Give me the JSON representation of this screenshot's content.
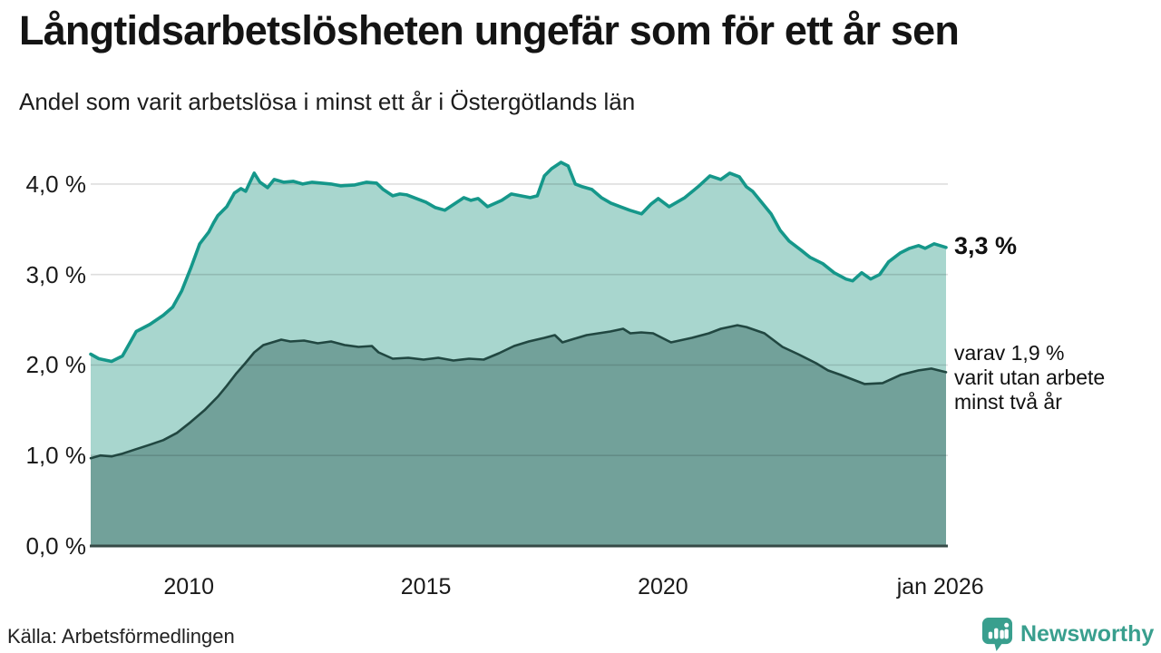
{
  "header": {
    "title": "Långtidsarbetslösheten ungefär som för ett år sen",
    "subtitle": "Andel som varit arbetslösa i minst ett år i Östergötlands län"
  },
  "chart_data": {
    "type": "area",
    "title": "Långtidsarbetslösheten ungefär som för ett år sen",
    "subtitle": "Andel som varit arbetslösa i minst ett år i Östergötlands län",
    "xlabel": "",
    "ylabel": "",
    "grid": true,
    "legend": "none",
    "xlim": [
      2007.93,
      2025.97
    ],
    "ylim": [
      0,
      4.38
    ],
    "y_ticks": [
      {
        "v": 0,
        "label": "0,0 %"
      },
      {
        "v": 1,
        "label": "1,0 %"
      },
      {
        "v": 2,
        "label": "2,0 %"
      },
      {
        "v": 3,
        "label": "3,0 %"
      },
      {
        "v": 4,
        "label": "4,0 %"
      }
    ],
    "x_ticks": [
      {
        "v": 2010,
        "label": "2010"
      },
      {
        "v": 2015,
        "label": "2015"
      },
      {
        "v": 2020,
        "label": "2020"
      },
      {
        "v": 2025.85,
        "label": "jan 2026"
      }
    ],
    "series": [
      {
        "name": "arbetslösa minst ett år",
        "color": "#15978a",
        "fill": "#a8d6ce",
        "end_value": 3.3,
        "points": [
          [
            2007.93,
            2.12
          ],
          [
            2008.1,
            2.07
          ],
          [
            2008.37,
            2.04
          ],
          [
            2008.6,
            2.1
          ],
          [
            2008.89,
            2.37
          ],
          [
            2009.18,
            2.45
          ],
          [
            2009.46,
            2.55
          ],
          [
            2009.66,
            2.64
          ],
          [
            2009.85,
            2.82
          ],
          [
            2010.04,
            3.07
          ],
          [
            2010.23,
            3.34
          ],
          [
            2010.42,
            3.47
          ],
          [
            2010.52,
            3.57
          ],
          [
            2010.61,
            3.65
          ],
          [
            2010.8,
            3.75
          ],
          [
            2010.96,
            3.9
          ],
          [
            2011.1,
            3.95
          ],
          [
            2011.2,
            3.92
          ],
          [
            2011.38,
            4.12
          ],
          [
            2011.5,
            4.02
          ],
          [
            2011.66,
            3.96
          ],
          [
            2011.8,
            4.05
          ],
          [
            2012.0,
            4.02
          ],
          [
            2012.2,
            4.03
          ],
          [
            2012.4,
            4.0
          ],
          [
            2012.6,
            4.02
          ],
          [
            2012.8,
            4.01
          ],
          [
            2013.0,
            4.0
          ],
          [
            2013.2,
            3.98
          ],
          [
            2013.5,
            3.99
          ],
          [
            2013.75,
            4.02
          ],
          [
            2013.96,
            4.01
          ],
          [
            2014.1,
            3.94
          ],
          [
            2014.3,
            3.87
          ],
          [
            2014.45,
            3.89
          ],
          [
            2014.6,
            3.88
          ],
          [
            2014.8,
            3.84
          ],
          [
            2015.0,
            3.8
          ],
          [
            2015.2,
            3.74
          ],
          [
            2015.4,
            3.71
          ],
          [
            2015.6,
            3.78
          ],
          [
            2015.8,
            3.85
          ],
          [
            2015.95,
            3.82
          ],
          [
            2016.1,
            3.84
          ],
          [
            2016.3,
            3.75
          ],
          [
            2016.6,
            3.82
          ],
          [
            2016.8,
            3.89
          ],
          [
            2017.0,
            3.87
          ],
          [
            2017.2,
            3.85
          ],
          [
            2017.35,
            3.87
          ],
          [
            2017.5,
            4.09
          ],
          [
            2017.65,
            4.17
          ],
          [
            2017.85,
            4.24
          ],
          [
            2018.0,
            4.2
          ],
          [
            2018.15,
            4.0
          ],
          [
            2018.3,
            3.97
          ],
          [
            2018.5,
            3.94
          ],
          [
            2018.7,
            3.85
          ],
          [
            2018.9,
            3.79
          ],
          [
            2019.1,
            3.75
          ],
          [
            2019.3,
            3.71
          ],
          [
            2019.55,
            3.67
          ],
          [
            2019.75,
            3.78
          ],
          [
            2019.9,
            3.84
          ],
          [
            2020.13,
            3.75
          ],
          [
            2020.46,
            3.85
          ],
          [
            2020.74,
            3.97
          ],
          [
            2020.99,
            4.09
          ],
          [
            2021.22,
            4.05
          ],
          [
            2021.41,
            4.12
          ],
          [
            2021.61,
            4.08
          ],
          [
            2021.76,
            3.97
          ],
          [
            2021.89,
            3.92
          ],
          [
            2022.28,
            3.67
          ],
          [
            2022.47,
            3.49
          ],
          [
            2022.66,
            3.37
          ],
          [
            2022.91,
            3.27
          ],
          [
            2023.1,
            3.19
          ],
          [
            2023.37,
            3.12
          ],
          [
            2023.61,
            3.02
          ],
          [
            2023.86,
            2.95
          ],
          [
            2024.0,
            2.93
          ],
          [
            2024.19,
            3.02
          ],
          [
            2024.38,
            2.95
          ],
          [
            2024.57,
            3.0
          ],
          [
            2024.76,
            3.14
          ],
          [
            2025.01,
            3.24
          ],
          [
            2025.2,
            3.29
          ],
          [
            2025.39,
            3.32
          ],
          [
            2025.53,
            3.29
          ],
          [
            2025.72,
            3.34
          ],
          [
            2025.97,
            3.3
          ]
        ]
      },
      {
        "name": "varav utan arbete minst två år",
        "color": "#214741",
        "fill": "#72a19a",
        "end_value": 1.9,
        "points": [
          [
            2007.93,
            0.97
          ],
          [
            2008.13,
            1.0
          ],
          [
            2008.37,
            0.99
          ],
          [
            2008.6,
            1.02
          ],
          [
            2008.89,
            1.07
          ],
          [
            2009.18,
            1.12
          ],
          [
            2009.46,
            1.17
          ],
          [
            2009.75,
            1.25
          ],
          [
            2010.04,
            1.37
          ],
          [
            2010.33,
            1.5
          ],
          [
            2010.61,
            1.65
          ],
          [
            2010.8,
            1.77
          ],
          [
            2010.99,
            1.9
          ],
          [
            2011.19,
            2.02
          ],
          [
            2011.38,
            2.14
          ],
          [
            2011.57,
            2.22
          ],
          [
            2011.76,
            2.25
          ],
          [
            2011.95,
            2.28
          ],
          [
            2012.14,
            2.26
          ],
          [
            2012.43,
            2.27
          ],
          [
            2012.72,
            2.24
          ],
          [
            2013.0,
            2.26
          ],
          [
            2013.29,
            2.22
          ],
          [
            2013.58,
            2.2
          ],
          [
            2013.86,
            2.21
          ],
          [
            2014.0,
            2.14
          ],
          [
            2014.3,
            2.07
          ],
          [
            2014.63,
            2.08
          ],
          [
            2014.95,
            2.06
          ],
          [
            2015.26,
            2.08
          ],
          [
            2015.58,
            2.05
          ],
          [
            2015.91,
            2.07
          ],
          [
            2016.22,
            2.06
          ],
          [
            2016.54,
            2.13
          ],
          [
            2016.86,
            2.21
          ],
          [
            2017.17,
            2.26
          ],
          [
            2017.5,
            2.3
          ],
          [
            2017.72,
            2.33
          ],
          [
            2017.88,
            2.25
          ],
          [
            2018.13,
            2.29
          ],
          [
            2018.39,
            2.33
          ],
          [
            2018.64,
            2.35
          ],
          [
            2018.89,
            2.37
          ],
          [
            2019.16,
            2.4
          ],
          [
            2019.31,
            2.35
          ],
          [
            2019.54,
            2.36
          ],
          [
            2019.79,
            2.35
          ],
          [
            2020.17,
            2.25
          ],
          [
            2020.61,
            2.3
          ],
          [
            2020.97,
            2.35
          ],
          [
            2021.22,
            2.4
          ],
          [
            2021.57,
            2.44
          ],
          [
            2021.76,
            2.42
          ],
          [
            2022.14,
            2.35
          ],
          [
            2022.52,
            2.2
          ],
          [
            2022.85,
            2.12
          ],
          [
            2023.23,
            2.02
          ],
          [
            2023.48,
            1.94
          ],
          [
            2023.75,
            1.89
          ],
          [
            2024.0,
            1.84
          ],
          [
            2024.25,
            1.79
          ],
          [
            2024.63,
            1.8
          ],
          [
            2025.01,
            1.89
          ],
          [
            2025.39,
            1.94
          ],
          [
            2025.66,
            1.96
          ],
          [
            2025.97,
            1.92
          ]
        ]
      }
    ],
    "annotations": {
      "end_value_label": "3,3 %",
      "side_note": "varav 1,9 %\nvarit utan arbete\nminst två år"
    }
  },
  "footer": {
    "source": "Källa: Arbetsförmedlingen",
    "brand": "Newsworthy"
  },
  "colors": {
    "axis": "#364a47",
    "gridline": "rgba(0,0,0,0.13)",
    "brand": "#399f8e",
    "series_line_1": "#15978a",
    "series_fill_1": "#a8d6ce",
    "series_line_2": "#214741",
    "series_fill_2": "#72a19a"
  }
}
